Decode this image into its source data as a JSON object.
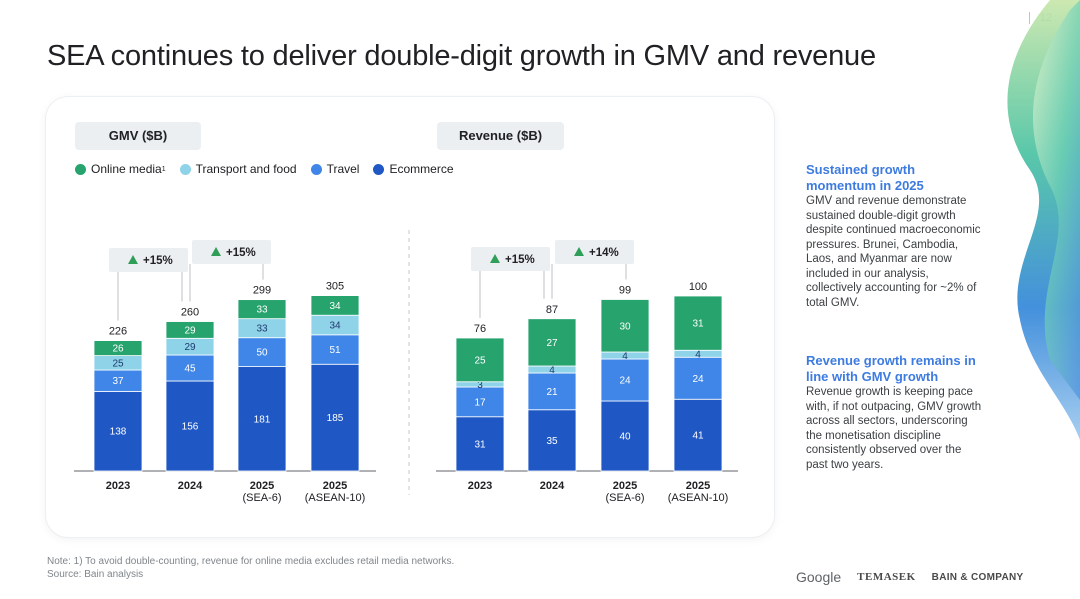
{
  "page_number": "12",
  "title": "SEA continues to deliver double-digit growth in GMV and revenue",
  "legend": {
    "online_media": "Online media",
    "online_media_sup": "1",
    "transport_food": "Transport and food",
    "travel": "Travel",
    "ecommerce": "Ecommerce"
  },
  "colors": {
    "online_media": "#27a36e",
    "transport_food": "#8fd3e8",
    "travel": "#3f86e8",
    "ecommerce": "#1f57c4",
    "sidebar_heading": "#3d7be0"
  },
  "chart_data": [
    {
      "type": "bar",
      "stacked": true,
      "title": "GMV ($B)",
      "categories": [
        "2023",
        "2024",
        "2025\n(SEA-6)",
        "2025\n(ASEAN-10)"
      ],
      "series": [
        {
          "name": "Ecommerce",
          "values": [
            138,
            156,
            181,
            185
          ]
        },
        {
          "name": "Travel",
          "values": [
            37,
            45,
            50,
            51
          ]
        },
        {
          "name": "Transport and food",
          "values": [
            25,
            29,
            33,
            34
          ]
        },
        {
          "name": "Online media",
          "values": [
            26,
            29,
            33,
            34
          ]
        }
      ],
      "totals": [
        226,
        260,
        299,
        305
      ],
      "growth_annotations": [
        {
          "from": "2023",
          "to": "2024",
          "label": "+15%"
        },
        {
          "from": "2024",
          "to": "2025\n(SEA-6)",
          "label": "+15%"
        }
      ],
      "legend_position": "top-left",
      "grid": false
    },
    {
      "type": "bar",
      "stacked": true,
      "title": "Revenue ($B)",
      "categories": [
        "2023",
        "2024",
        "2025\n(SEA-6)",
        "2025\n(ASEAN-10)"
      ],
      "series": [
        {
          "name": "Ecommerce",
          "values": [
            31,
            35,
            40,
            41
          ]
        },
        {
          "name": "Travel",
          "values": [
            17,
            21,
            24,
            24
          ]
        },
        {
          "name": "Transport and food",
          "values": [
            3,
            4,
            4,
            4
          ]
        },
        {
          "name": "Online media",
          "values": [
            25,
            27,
            30,
            31
          ]
        }
      ],
      "totals": [
        76,
        87,
        99,
        100
      ],
      "growth_annotations": [
        {
          "from": "2023",
          "to": "2024",
          "label": "+15%"
        },
        {
          "from": "2024",
          "to": "2025\n(SEA-6)",
          "label": "+14%"
        }
      ],
      "legend_position": "top-left",
      "grid": false
    }
  ],
  "sidebar": [
    {
      "heading": "Sustained growth momentum in 2025",
      "body": "GMV and revenue demonstrate sustained double-digit growth despite continued macroeconomic pressures. Brunei, Cambodia, Laos, and Myanmar are now included in our analysis, collectively accounting for ~2% of total GMV."
    },
    {
      "heading": "Revenue growth remains in line with GMV growth",
      "body": "Revenue growth is keeping pace with, if not outpacing, GMV growth across all sectors, underscoring the monetisation discipline consistently observed over the past two years."
    }
  ],
  "footnote": {
    "note": "Note: 1) To avoid double-counting, revenue for online media excludes retail media networks.",
    "source": "Source: Bain analysis"
  },
  "logos": {
    "google": "Google",
    "temasek": "TEMASEK",
    "bain": "BAIN & COMPANY"
  }
}
